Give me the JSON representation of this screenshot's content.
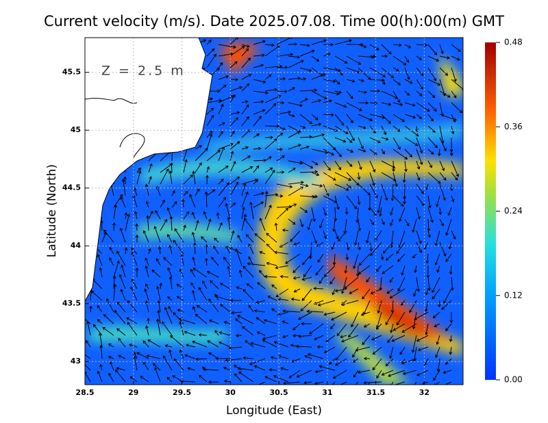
{
  "title": "Current velocity (m/s). Date 2025.07.08. Time 00(h):00(m) GMT",
  "depth_label": "Z = 2.5 m",
  "x_axis": {
    "label": "Longitude (East)",
    "lim": [
      28.5,
      32.4
    ],
    "ticks": [
      28.5,
      29,
      29.5,
      30,
      30.5,
      31,
      31.5,
      32
    ]
  },
  "y_axis": {
    "label": "Latitude (North)",
    "lim": [
      42.8,
      45.8
    ],
    "ticks": [
      43,
      43.5,
      44,
      44.5,
      45,
      45.5
    ]
  },
  "colorbar": {
    "lim": [
      0,
      0.48
    ],
    "ticks": [
      {
        "value": 0,
        "label": "0.00"
      },
      {
        "value": 0.12,
        "label": "0.12"
      },
      {
        "value": 0.24,
        "label": "0.24"
      },
      {
        "value": 0.36,
        "label": "0.36"
      },
      {
        "value": 0.48,
        "label": "0.48"
      }
    ]
  }
}
